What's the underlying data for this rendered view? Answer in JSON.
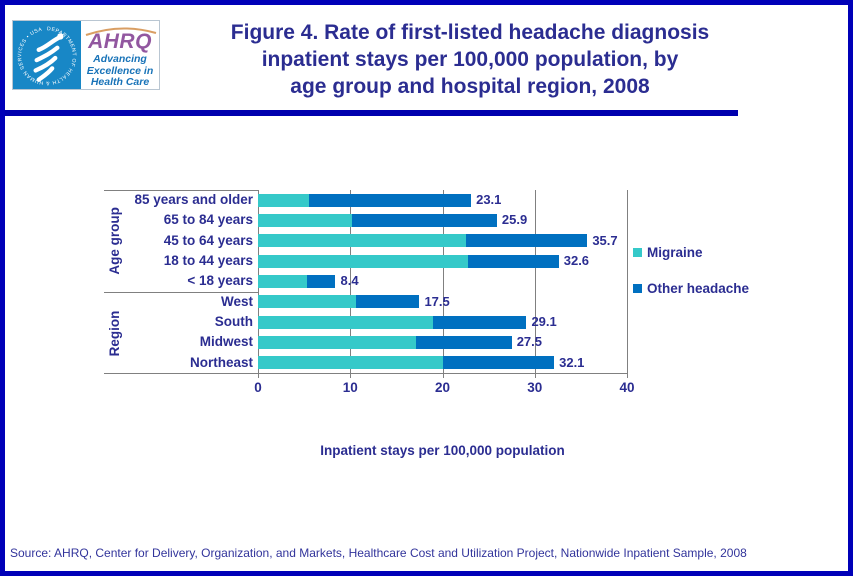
{
  "header": {
    "logo": {
      "hhs_circular_text": "DEPARTMENT OF HEALTH & HUMAN SERVICES • USA",
      "org": "AHRQ",
      "tagline_lines": [
        "Advancing",
        "Excellence in",
        "Health Care"
      ]
    },
    "title_lines": [
      "Figure 4. Rate of first-listed headache diagnosis",
      "inpatient stays per 100,000 population, by",
      "age group and hospital region, 2008"
    ]
  },
  "chart_data": {
    "type": "bar",
    "orientation": "horizontal",
    "stacked": true,
    "grid": true,
    "xlim": [
      0,
      40
    ],
    "x_ticks": [
      0,
      10,
      20,
      30,
      40
    ],
    "xlabel": "Inpatient stays per 100,000 population",
    "legend_position": "right",
    "groups": [
      {
        "label": "Age group",
        "categories": [
          "85 years and older",
          "65 to 84 years",
          "45 to 64 years",
          "18 to 44 years",
          "< 18 years"
        ]
      },
      {
        "label": "Region",
        "categories": [
          "West",
          "South",
          "Midwest",
          "Northeast"
        ]
      }
    ],
    "categories": [
      "85 years and older",
      "65 to 84 years",
      "45 to 64 years",
      "18 to 44 years",
      "< 18 years",
      "West",
      "South",
      "Midwest",
      "Northeast"
    ],
    "series": [
      {
        "name": "Migraine",
        "color": "#35C9C9",
        "values": [
          5.5,
          10.2,
          22.6,
          22.8,
          5.3,
          10.6,
          19.0,
          17.1,
          20.1
        ]
      },
      {
        "name": "Other headache",
        "color": "#0070C0",
        "values": [
          17.6,
          15.7,
          13.1,
          9.8,
          3.1,
          6.9,
          10.1,
          10.4,
          12.0
        ]
      }
    ],
    "totals": [
      23.1,
      25.9,
      35.7,
      32.6,
      8.4,
      17.5,
      29.1,
      27.5,
      32.1
    ],
    "colors": {
      "migraine": "#35C9C9",
      "other_headache": "#0070C0",
      "gridline": "#808080",
      "text": "#2B2D91"
    }
  },
  "footer": {
    "source": "Source: AHRQ, Center for Delivery, Organization, and Markets, Healthcare Cost and Utilization Project, Nationwide Inpatient Sample, 2008"
  }
}
